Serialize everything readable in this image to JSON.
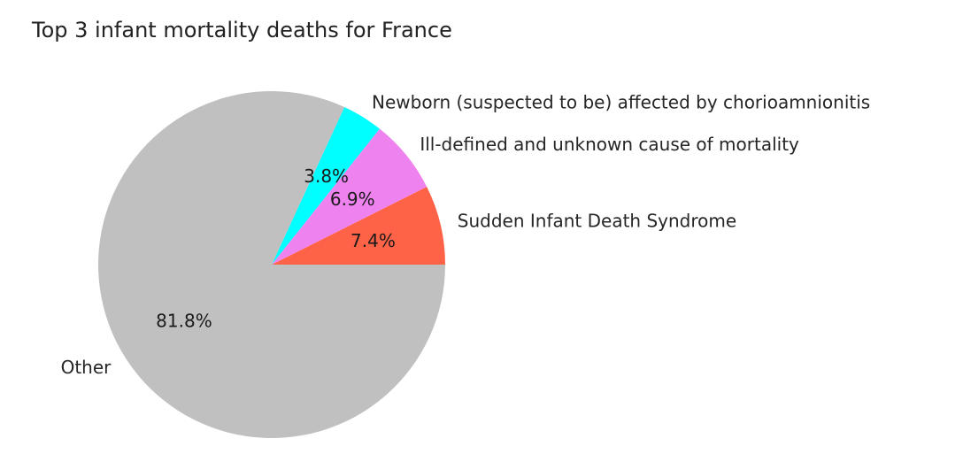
{
  "chart_data": {
    "type": "pie",
    "title": "Top 3 infant mortality deaths for France",
    "slices": [
      {
        "label": "Sudden Infant Death Syndrome",
        "value": 7.4,
        "pct_label": "7.4%",
        "color": "#ff6347"
      },
      {
        "label": "Ill-defined and unknown cause of mortality",
        "value": 6.9,
        "pct_label": "6.9%",
        "color": "#ee82ee"
      },
      {
        "label": "Newborn (suspected to be) affected by chorioamnionitis",
        "value": 3.8,
        "pct_label": "3.8%",
        "color": "#00ffff"
      },
      {
        "label": "Other",
        "value": 81.8,
        "pct_label": "81.8%",
        "color": "#c0c0c0"
      }
    ]
  }
}
